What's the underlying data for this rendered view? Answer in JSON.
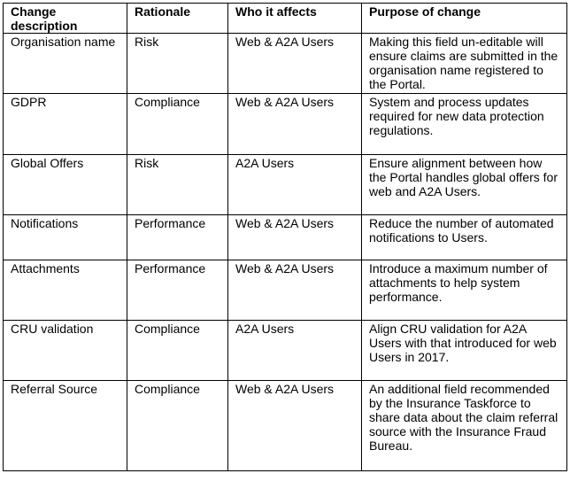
{
  "table": {
    "headers": [
      "Change description",
      "Rationale",
      "Who it affects",
      "Purpose of change"
    ],
    "rows": [
      {
        "change": "Organisation name",
        "rationale": "Risk",
        "affects": "Web & A2A Users",
        "purpose": "Making this field un-editable will ensure claims are submitted in the organisation name registered to the Portal."
      },
      {
        "change": "GDPR",
        "rationale": "Compliance",
        "affects": "Web & A2A Users",
        "purpose": "System and process updates required for new data protection regulations."
      },
      {
        "change": "Global Offers",
        "rationale": "Risk",
        "affects": "A2A Users",
        "purpose": "Ensure alignment between how the Portal handles global offers for web and A2A Users."
      },
      {
        "change": "Notifications",
        "rationale": "Performance",
        "affects": "Web & A2A Users",
        "purpose": "Reduce the number of automated notifications to Users."
      },
      {
        "change": "Attachments",
        "rationale": "Performance",
        "affects": "Web & A2A Users",
        "purpose": "Introduce a maximum number of attachments to help system performance."
      },
      {
        "change": "CRU validation",
        "rationale": "Compliance",
        "affects": "A2A Users",
        "purpose": "Align CRU validation for A2A Users with that introduced for web Users in 2017."
      },
      {
        "change": "Referral Source",
        "rationale": "Compliance",
        "affects": "Web & A2A Users",
        "purpose": "An additional field recommended by the Insurance Taskforce to share data about the claim referral source with the Insurance Fraud Bureau."
      }
    ]
  }
}
